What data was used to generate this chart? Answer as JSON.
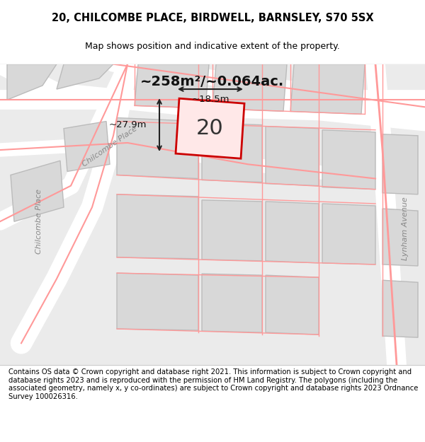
{
  "title_line1": "20, CHILCOMBE PLACE, BIRDWELL, BARNSLEY, S70 5SX",
  "title_line2": "Map shows position and indicative extent of the property.",
  "area_text": "~258m²/~0.064ac.",
  "number_label": "20",
  "dim_height": "~27.9m",
  "dim_width": "~18.5m",
  "street_label_1": "Chilcombe Place",
  "street_label_2": "Chilcombe Place",
  "street_label_3": "Lynham Avenue",
  "footer_text": "Contains OS data © Crown copyright and database right 2021. This information is subject to Crown copyright and database rights 2023 and is reproduced with the permission of HM Land Registry. The polygons (including the associated geometry, namely x, y co-ordinates) are subject to Crown copyright and database rights 2023 Ordnance Survey 100026316.",
  "bg_color": "#e8e8e8",
  "map_bg": "#f0f0f0",
  "road_color": "#ffffff",
  "building_fill": "#d8d8d8",
  "building_edge": "#c0c0c0",
  "highlight_color": "#ff4444",
  "highlight_fill": "#ffe0e0",
  "dim_line_color": "#333333",
  "footer_bg": "#ffffff"
}
